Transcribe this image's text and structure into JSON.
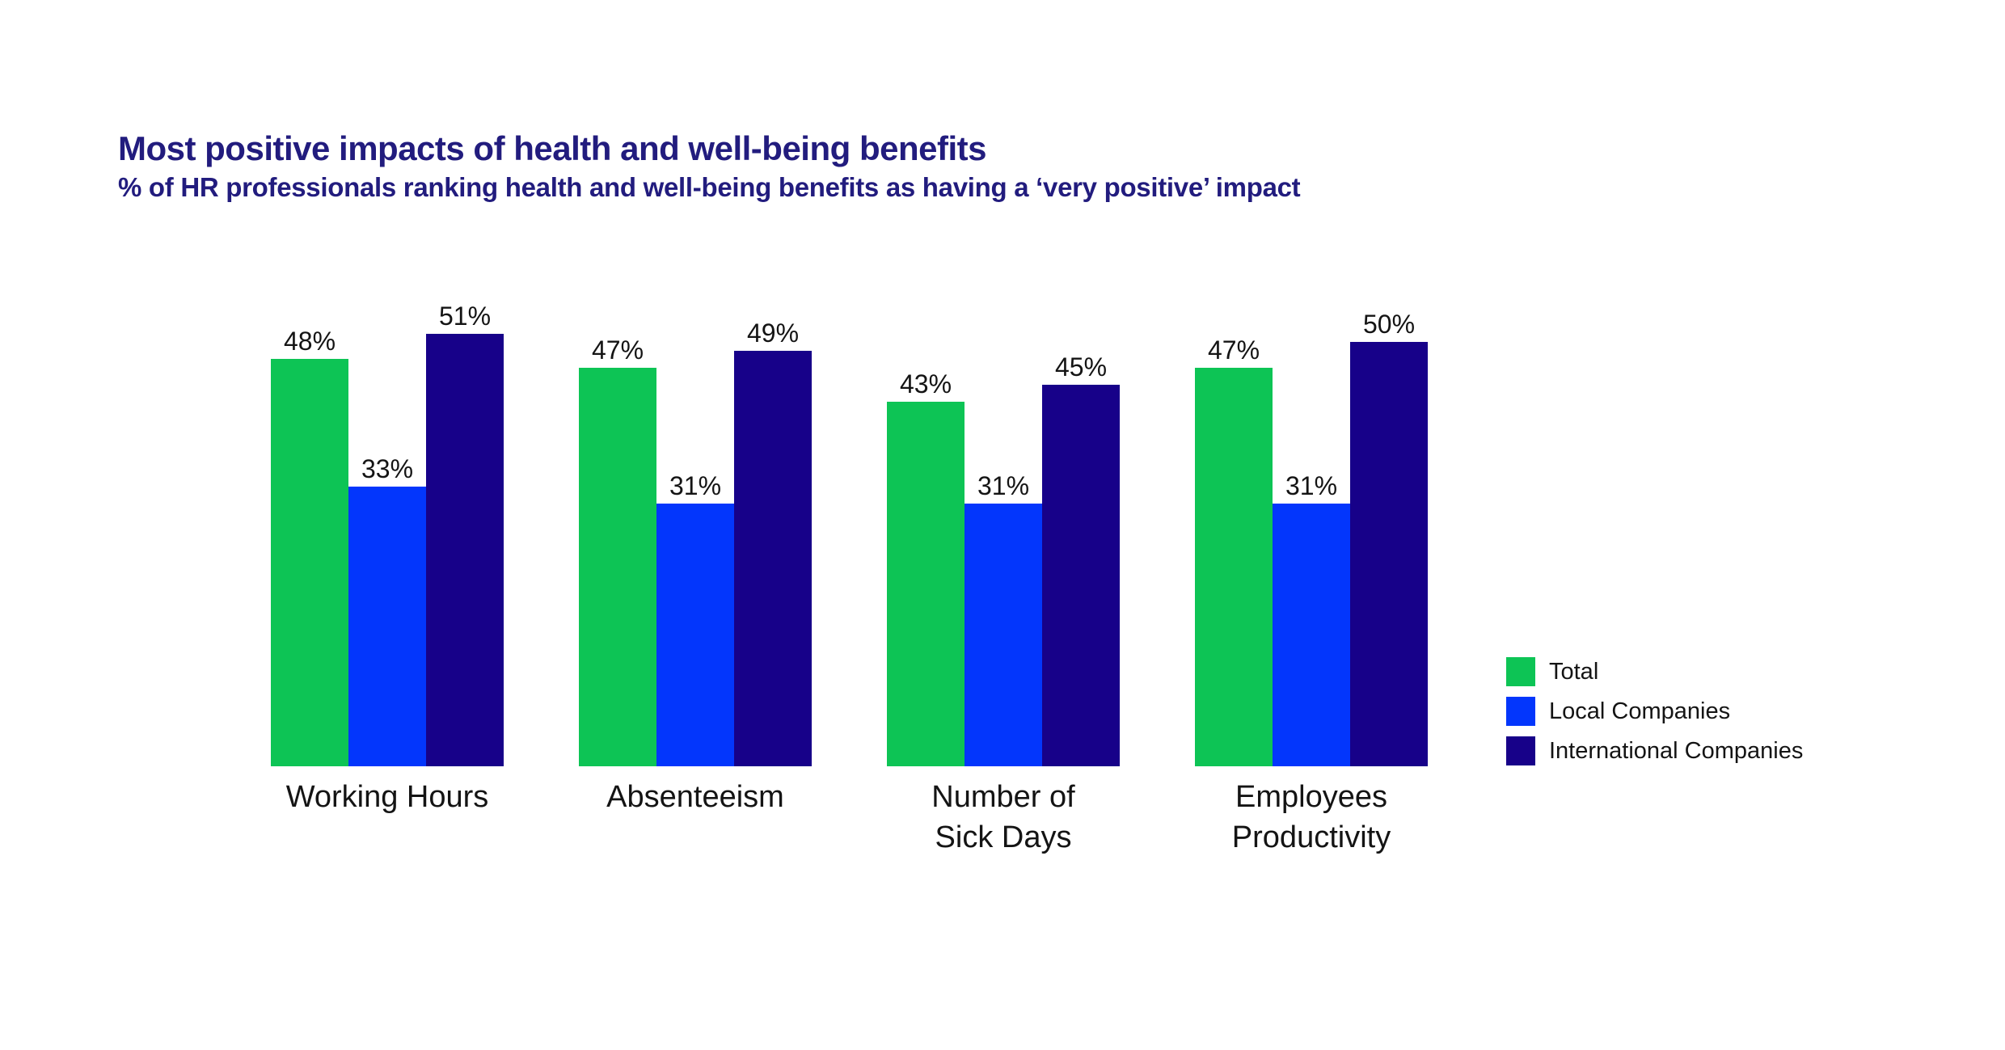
{
  "header": {
    "title": "Most positive impacts of health and well-being benefits",
    "subtitle": "% of HR professionals ranking health and well-being benefits as having a ‘very positive’ impact",
    "title_color": "#221C7E"
  },
  "colors": {
    "total_green": "#0DC455",
    "local_blue": "#0336FC",
    "international_navy": "#170189",
    "label_text": "#141414",
    "background": "#FFFFFF"
  },
  "chart_data": {
    "type": "bar",
    "title": "Most positive impacts of health and well-being benefits",
    "subtitle": "% of HR professionals ranking health and well-being benefits as having a ‘very positive’ impact",
    "categories": [
      "Working Hours",
      "Absenteeism",
      "Number of Sick Days",
      "Employees Productivity"
    ],
    "category_lines": [
      [
        "Working Hours"
      ],
      [
        "Absenteeism"
      ],
      [
        "Number of",
        "Sick Days"
      ],
      [
        "Employees",
        "Productivity"
      ]
    ],
    "series": [
      {
        "name": "Total",
        "color": "#0DC455",
        "values": [
          48,
          47,
          43,
          47
        ]
      },
      {
        "name": "Local Companies",
        "color": "#0336FC",
        "values": [
          33,
          31,
          31,
          31
        ]
      },
      {
        "name": "International Companies",
        "color": "#170189",
        "values": [
          51,
          49,
          45,
          50
        ]
      }
    ],
    "value_suffix": "%",
    "value_labels": true,
    "ylim": [
      0,
      55
    ],
    "grid": false,
    "axes_visible": false,
    "legend_position": "right"
  },
  "legend": {
    "items": [
      {
        "label": "Total",
        "color": "#0DC455"
      },
      {
        "label": "Local Companies",
        "color": "#0336FC"
      },
      {
        "label": "International Companies",
        "color": "#170189"
      }
    ]
  }
}
